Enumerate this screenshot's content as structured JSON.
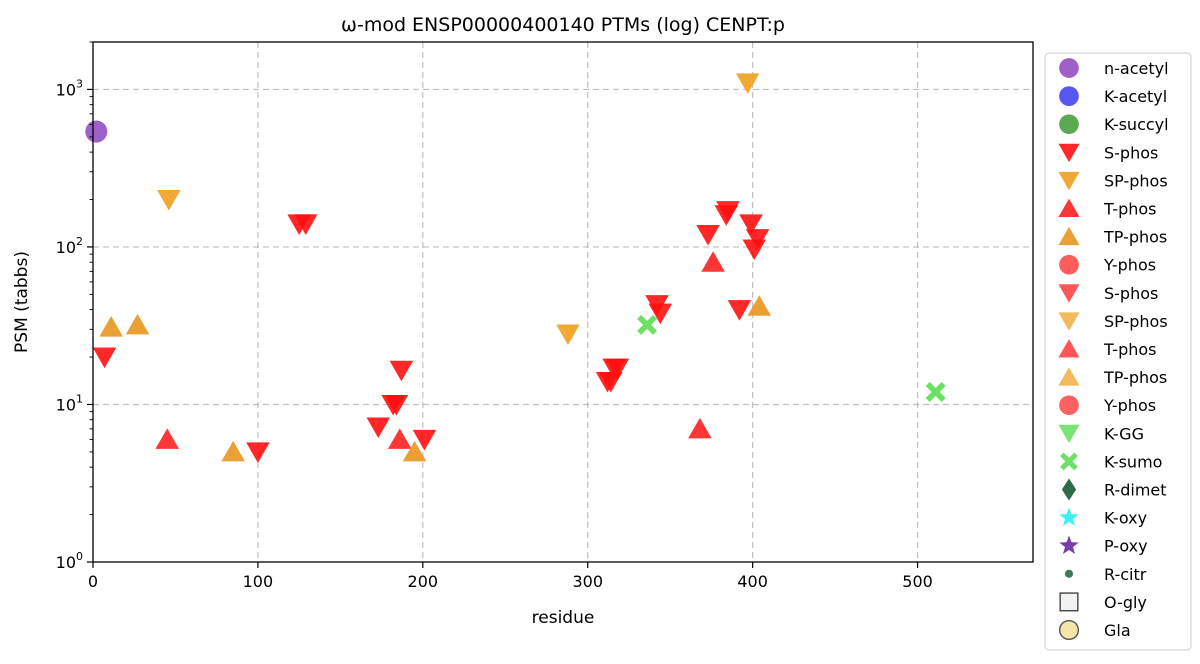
{
  "chart_data": {
    "type": "scatter",
    "title": "ω-mod ENSP00000400140 PTMs (log) CENPT:p",
    "xlabel": "residue",
    "ylabel": "PSM (tabbs)",
    "xlim": [
      0,
      570
    ],
    "ylim": [
      1,
      2000
    ],
    "yscale": "log",
    "grid": true,
    "legend_position": "outside-right",
    "x_ticks": [
      {
        "value": 0,
        "label": "0"
      },
      {
        "value": 100,
        "label": "100"
      },
      {
        "value": 200,
        "label": "200"
      },
      {
        "value": 300,
        "label": "300"
      },
      {
        "value": 400,
        "label": "400"
      },
      {
        "value": 500,
        "label": "500"
      }
    ],
    "y_ticks": [
      {
        "value": 1,
        "base": "10",
        "exp": "0"
      },
      {
        "value": 10,
        "base": "10",
        "exp": "1"
      },
      {
        "value": 100,
        "base": "10",
        "exp": "2"
      },
      {
        "value": 1000,
        "base": "10",
        "exp": "3"
      }
    ],
    "series": [
      {
        "name": "n-acetyl",
        "marker": "circle",
        "color": "#8e44c0",
        "points": [
          [
            2,
            540
          ]
        ]
      },
      {
        "name": "K-acetyl",
        "marker": "circle",
        "color": "#3a3aee",
        "points": []
      },
      {
        "name": "K-succyl",
        "marker": "circle",
        "color": "#3e9a35",
        "points": []
      },
      {
        "name": "S-phos",
        "marker": "triangle-down",
        "color": "#ff0f0f",
        "points": [
          [
            7,
            20
          ],
          [
            100,
            5
          ],
          [
            125,
            140
          ],
          [
            129,
            140
          ],
          [
            173,
            7.2
          ],
          [
            182,
            10
          ],
          [
            184,
            10
          ],
          [
            187,
            16.5
          ],
          [
            201,
            6
          ],
          [
            312,
            14
          ],
          [
            314,
            14
          ],
          [
            316,
            17
          ],
          [
            318,
            17
          ],
          [
            342,
            43
          ],
          [
            344,
            38
          ],
          [
            373,
            120
          ],
          [
            384,
            160
          ],
          [
            385,
            170
          ],
          [
            392,
            40
          ],
          [
            399,
            140
          ],
          [
            401,
            97
          ],
          [
            403,
            113
          ]
        ]
      },
      {
        "name": "SP-phos",
        "marker": "triangle-down",
        "color": "#f0a020",
        "points": [
          [
            46,
            200
          ],
          [
            288,
            28
          ],
          [
            397,
            1100
          ]
        ]
      },
      {
        "name": "T-phos",
        "marker": "triangle-up",
        "color": "#ff2020",
        "points": [
          [
            45,
            6
          ],
          [
            186,
            6
          ],
          [
            368,
            7
          ],
          [
            376,
            80
          ]
        ]
      },
      {
        "name": "TP-phos",
        "marker": "triangle-up",
        "color": "#e8961e",
        "points": [
          [
            11,
            31
          ],
          [
            27,
            32
          ],
          [
            85,
            5
          ],
          [
            195,
            5
          ],
          [
            404,
            42
          ]
        ]
      },
      {
        "name": "Y-phos",
        "marker": "circle",
        "color": "#ff4040",
        "points": []
      },
      {
        "name": "S-phos",
        "marker": "triangle-down",
        "color": "#ff4545",
        "points": []
      },
      {
        "name": "SP-phos",
        "marker": "triangle-down",
        "color": "#f2b24a",
        "points": []
      },
      {
        "name": "T-phos",
        "marker": "triangle-up",
        "color": "#ff4545",
        "points": []
      },
      {
        "name": "TP-phos",
        "marker": "triangle-up",
        "color": "#f2b24a",
        "points": []
      },
      {
        "name": "Y-phos",
        "marker": "circle",
        "color": "#ff4545",
        "points": []
      },
      {
        "name": "K-GG",
        "marker": "triangle-down",
        "color": "#6ee066",
        "points": []
      },
      {
        "name": "K-sumo",
        "marker": "x",
        "color": "#6ee066",
        "points": [
          [
            336,
            32
          ],
          [
            511,
            12
          ]
        ]
      },
      {
        "name": "R-dimet",
        "marker": "diamond",
        "color": "#2f6b4b",
        "points": []
      },
      {
        "name": "K-oxy",
        "marker": "star",
        "color": "#3ff0f0",
        "points": []
      },
      {
        "name": "P-oxy",
        "marker": "star",
        "color": "#7b3da8",
        "points": []
      },
      {
        "name": "R-citr",
        "marker": "dot",
        "color": "#3f7a5a",
        "points": []
      },
      {
        "name": "O-gly",
        "marker": "square-open",
        "color": "#444444",
        "points": []
      },
      {
        "name": "Gla",
        "marker": "circle-open",
        "color": "#f5e6a8",
        "points": []
      }
    ]
  }
}
